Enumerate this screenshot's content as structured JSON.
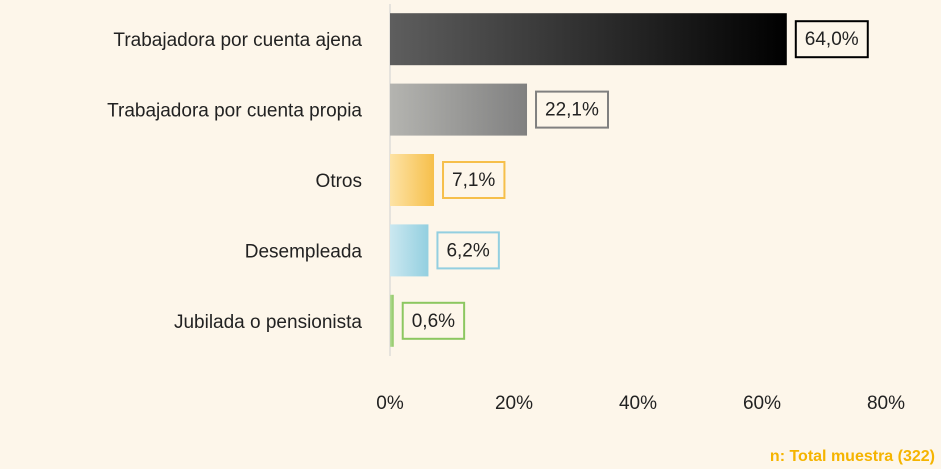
{
  "chart_data": {
    "type": "bar",
    "orientation": "horizontal",
    "categories": [
      "Trabajadora por cuenta ajena",
      "Trabajadora por cuenta propia",
      "Otros",
      "Desempleada",
      "Jubilada o pensionista"
    ],
    "values": [
      64.0,
      22.1,
      7.1,
      6.2,
      0.6
    ],
    "value_labels": [
      "64,0%",
      "22,1%",
      "7,1%",
      "6,2%",
      "0,6%"
    ],
    "colors": [
      [
        "#5e5e5e",
        "#000000"
      ],
      [
        "#b4b4b0",
        "#808080"
      ],
      [
        "#fde3a6",
        "#f6bf4a"
      ],
      [
        "#cbe8f0",
        "#93cfe0"
      ],
      [
        "#b6dc9a",
        "#8cc760"
      ]
    ],
    "xlim": [
      0,
      80
    ],
    "xticks": [
      {
        "value": 0,
        "label": "0%"
      },
      {
        "value": 20,
        "label": "20%"
      },
      {
        "value": 40,
        "label": "40%"
      },
      {
        "value": 60,
        "label": "60%"
      },
      {
        "value": 80,
        "label": "80%"
      }
    ],
    "annotation": "n: Total muestra (322)"
  }
}
